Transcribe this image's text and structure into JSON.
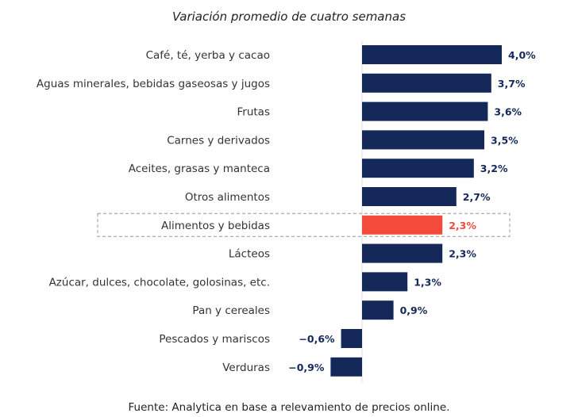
{
  "chart_data": {
    "type": "bar",
    "orientation": "horizontal",
    "title": "Variación promedio de cuatro semanas",
    "categories": [
      "Café, té, yerba y cacao",
      "Aguas minerales, bebidas gaseosas y jugos",
      "Frutas",
      "Carnes y derivados",
      "Aceites, grasas y manteca",
      "Otros alimentos",
      "Alimentos y bebidas",
      "Lácteos",
      "Azúcar, dulces, chocolate, golosinas, etc.",
      "Pan y cereales",
      "Pescados y mariscos",
      "Verduras"
    ],
    "values": [
      4.0,
      3.7,
      3.6,
      3.5,
      3.2,
      2.7,
      2.3,
      2.3,
      1.3,
      0.9,
      -0.6,
      -0.9
    ],
    "data_labels": [
      "4,0%",
      "3,7%",
      "3,6%",
      "3,5%",
      "3,2%",
      "2,7%",
      "2,3%",
      "2,3%",
      "1,3%",
      "0,9%",
      "−0,6%",
      "−0,9%"
    ],
    "highlighted_category": "Alimentos y bebidas",
    "colors": {
      "default": "#14295a",
      "highlight": "#f24b3c"
    },
    "xlabel": "",
    "ylabel": "",
    "grid": false,
    "source": "Fuente: Analytica en base a relevamiento de precios online."
  }
}
